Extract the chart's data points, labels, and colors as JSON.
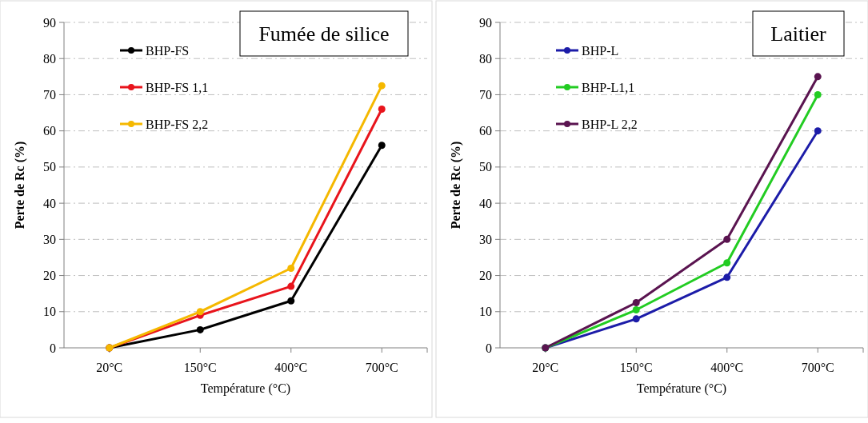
{
  "chart_data": [
    {
      "type": "line",
      "title": "Fumée de silice",
      "xlabel": "Température (°C)",
      "ylabel": "Perte de Rc (%)",
      "categories": [
        "20°C",
        "150°C",
        "400°C",
        "700°C"
      ],
      "ylim": [
        0,
        90
      ],
      "yticks": [
        0,
        10,
        20,
        30,
        40,
        50,
        60,
        70,
        80,
        90
      ],
      "grid": "y",
      "legend": "top left",
      "marker": "circle",
      "series": [
        {
          "name": "BHP-FS",
          "color": "#000000",
          "values": [
            0,
            5,
            13,
            56
          ]
        },
        {
          "name": "BHP-FS 1,1",
          "color": "#e8141c",
          "values": [
            0,
            9,
            17,
            66
          ]
        },
        {
          "name": "BHP-FS 2,2",
          "color": "#f5b800",
          "values": [
            0,
            10,
            22,
            72.5
          ]
        }
      ]
    },
    {
      "type": "line",
      "title": "Laitier",
      "xlabel": "Température (°C)",
      "ylabel": "Perte de Rc (%)",
      "categories": [
        "20°C",
        "150°C",
        "400°C",
        "700°C"
      ],
      "ylim": [
        0,
        90
      ],
      "yticks": [
        0,
        10,
        20,
        30,
        40,
        50,
        60,
        70,
        80,
        90
      ],
      "grid": "y",
      "legend": "top left",
      "marker": "circle",
      "series": [
        {
          "name": "BHP-L",
          "color": "#1c1ca8",
          "values": [
            0,
            8,
            19.5,
            60
          ]
        },
        {
          "name": "BHP-L1,1",
          "color": "#22cc22",
          "values": [
            0,
            10.5,
            23.5,
            70
          ]
        },
        {
          "name": "BHP-L 2,2",
          "color": "#5a1450",
          "values": [
            0,
            12.5,
            30,
            75
          ]
        }
      ]
    }
  ]
}
